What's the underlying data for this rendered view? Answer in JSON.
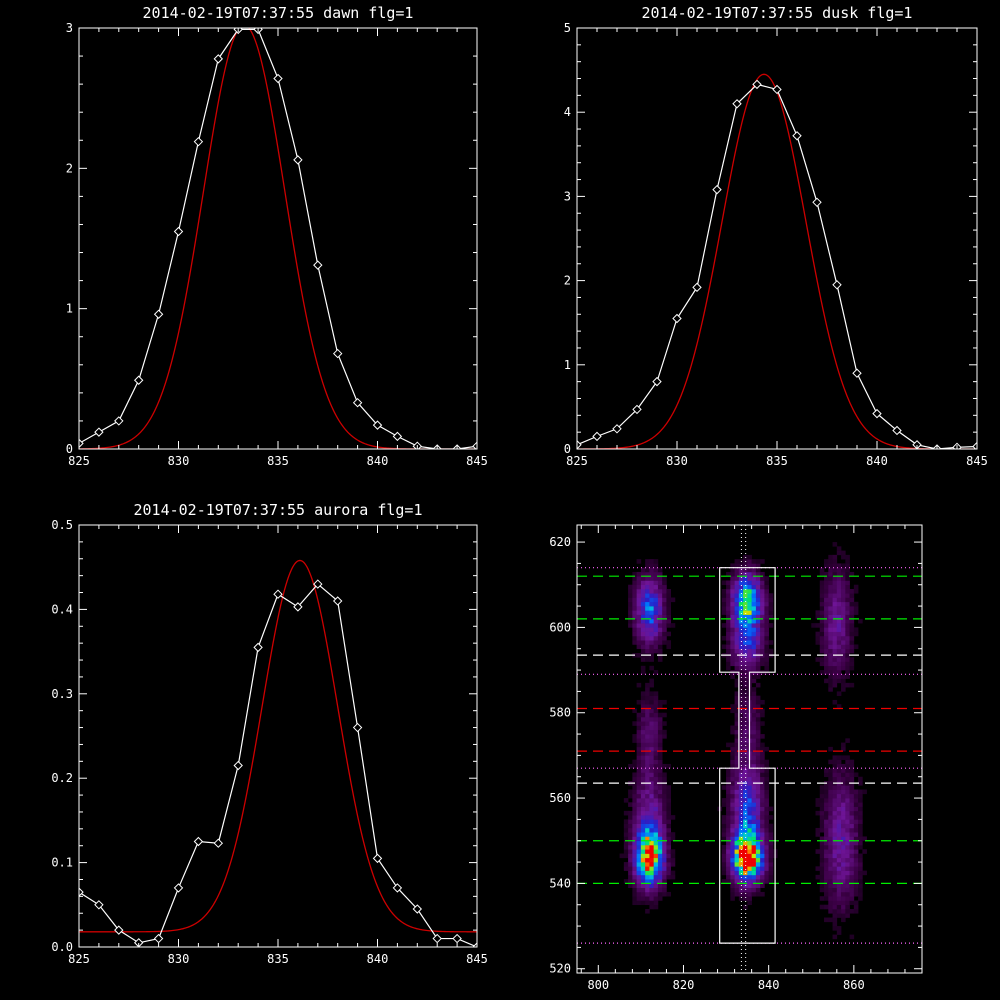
{
  "colors": {
    "background": "#000000",
    "axes": "#ffffff",
    "data": "#ffffff",
    "fit": "#cc0000"
  },
  "chart_data": [
    {
      "type": "line",
      "title": "2014-02-19T07:37:55 dawn flg=1",
      "xlim": [
        825,
        845
      ],
      "ylim": [
        0,
        3
      ],
      "xticks": [
        "825",
        "830",
        "835",
        "840",
        "845"
      ],
      "yticks": [
        "0",
        "1",
        "2",
        "3"
      ],
      "grid": false,
      "series": [
        {
          "marker": "diamond",
          "color": "#ffffff",
          "x": [
            825,
            826,
            827,
            828,
            829,
            830,
            831,
            832,
            833,
            834,
            835,
            836,
            837,
            838,
            839,
            840,
            841,
            842,
            843,
            844,
            845
          ],
          "y": [
            0.04,
            0.12,
            0.2,
            0.49,
            0.96,
            1.55,
            2.19,
            2.78,
            2.99,
            2.99,
            2.64,
            2.06,
            1.31,
            0.68,
            0.33,
            0.17,
            0.09,
            0.02,
            0.0,
            0.0,
            0.02
          ]
        },
        {
          "marker": "none",
          "color": "#cc0000",
          "fit": "gaussian",
          "amplitude": 3.02,
          "center": 833.3,
          "sigma": 2.05,
          "offset": 0.0
        }
      ]
    },
    {
      "type": "line",
      "title": "2014-02-19T07:37:55 dusk flg=1",
      "xlim": [
        825,
        845
      ],
      "ylim": [
        0,
        5
      ],
      "xticks": [
        "825",
        "830",
        "835",
        "840",
        "845"
      ],
      "yticks": [
        "0",
        "1",
        "2",
        "3",
        "4",
        "5"
      ],
      "grid": false,
      "series": [
        {
          "marker": "diamond",
          "color": "#ffffff",
          "x": [
            825,
            826,
            827,
            828,
            829,
            830,
            831,
            832,
            833,
            834,
            835,
            836,
            837,
            838,
            839,
            840,
            841,
            842,
            843,
            844,
            845
          ],
          "y": [
            0.05,
            0.15,
            0.24,
            0.47,
            0.8,
            1.55,
            1.92,
            3.08,
            4.1,
            4.33,
            4.27,
            3.72,
            2.93,
            1.95,
            0.9,
            0.42,
            0.22,
            0.05,
            0.0,
            0.02,
            0.03
          ]
        },
        {
          "marker": "none",
          "color": "#cc0000",
          "fit": "gaussian",
          "amplitude": 4.45,
          "center": 834.35,
          "sigma": 2.1,
          "offset": 0.0
        }
      ]
    },
    {
      "type": "line",
      "title": "2014-02-19T07:37:55 aurora flg=1",
      "xlim": [
        825,
        845
      ],
      "ylim": [
        0,
        0.5
      ],
      "xticks": [
        "825",
        "830",
        "835",
        "840",
        "845"
      ],
      "yticks": [
        "0.0",
        "0.1",
        "0.2",
        "0.3",
        "0.4",
        "0.5"
      ],
      "grid": false,
      "series": [
        {
          "marker": "diamond",
          "color": "#ffffff",
          "x": [
            825,
            826,
            827,
            828,
            829,
            830,
            831,
            832,
            833,
            834,
            835,
            836,
            837,
            838,
            839,
            840,
            841,
            842,
            843,
            844,
            845
          ],
          "y": [
            0.065,
            0.05,
            0.02,
            0.005,
            0.01,
            0.07,
            0.125,
            0.123,
            0.215,
            0.355,
            0.418,
            0.403,
            0.43,
            0.41,
            0.26,
            0.105,
            0.07,
            0.045,
            0.01,
            0.01,
            0.0
          ]
        },
        {
          "marker": "none",
          "color": "#cc0000",
          "fit": "gaussian",
          "amplitude": 0.44,
          "center": 836.1,
          "sigma": 1.9,
          "offset": 0.018
        }
      ]
    },
    {
      "type": "heatmap",
      "title": "",
      "xlim": [
        795,
        876
      ],
      "ylim": [
        519,
        624
      ],
      "xticks": [
        "800",
        "820",
        "840",
        "860"
      ],
      "yticks": [
        "520",
        "540",
        "560",
        "580",
        "600",
        "620"
      ],
      "colormap": "rainbow",
      "blobs": [
        {
          "x": 812,
          "y": 604,
          "sx": 2.2,
          "sy": 5.0,
          "amp": 0.45
        },
        {
          "x": 835,
          "y": 606,
          "sx": 2.3,
          "sy": 4.2,
          "amp": 0.72
        },
        {
          "x": 835,
          "y": 596,
          "sx": 2.5,
          "sy": 4.0,
          "amp": 0.32
        },
        {
          "x": 812,
          "y": 546,
          "sx": 2.1,
          "sy": 4.0,
          "amp": 0.8
        },
        {
          "x": 812,
          "y": 553,
          "sx": 2.4,
          "sy": 8.0,
          "amp": 0.3
        },
        {
          "x": 835,
          "y": 546,
          "sx": 2.3,
          "sy": 3.5,
          "amp": 1.0
        },
        {
          "x": 835,
          "y": 556,
          "sx": 2.4,
          "sy": 8.0,
          "amp": 0.42
        },
        {
          "x": 856,
          "y": 601,
          "sx": 2.3,
          "sy": 8.0,
          "amp": 0.22
        },
        {
          "x": 857,
          "y": 550,
          "sx": 2.6,
          "sy": 10.0,
          "amp": 0.25
        },
        {
          "x": 812,
          "y": 575,
          "sx": 2.0,
          "sy": 6.0,
          "amp": 0.15
        },
        {
          "x": 835,
          "y": 577,
          "sx": 2.0,
          "sy": 7.0,
          "amp": 0.12
        }
      ],
      "horizontal_lines": [
        {
          "y": 614,
          "style": "dotted",
          "color": "#ff66ff"
        },
        {
          "y": 612,
          "style": "dashed",
          "color": "#00ee00"
        },
        {
          "y": 602,
          "style": "dashed",
          "color": "#00ee00"
        },
        {
          "y": 593.5,
          "style": "dashed",
          "color": "#ffffff"
        },
        {
          "y": 589,
          "style": "dotted",
          "color": "#ff66ff"
        },
        {
          "y": 581,
          "style": "dashed",
          "color": "#ee0000"
        },
        {
          "y": 571,
          "style": "dashed",
          "color": "#ee0000"
        },
        {
          "y": 567,
          "style": "dotted",
          "color": "#ff66ff"
        },
        {
          "y": 563.5,
          "style": "dashed",
          "color": "#ffffff"
        },
        {
          "y": 550,
          "style": "dashed",
          "color": "#00ee00"
        },
        {
          "y": 540,
          "style": "dashed",
          "color": "#00ee00"
        },
        {
          "y": 526,
          "style": "dotted",
          "color": "#ff66ff"
        }
      ],
      "vertical_lines": [
        {
          "x": 833.6,
          "style": "dotted",
          "color": "#ffffff"
        },
        {
          "x": 834.6,
          "style": "dotted",
          "color": "#ffffff"
        }
      ],
      "outline": [
        [
          828.5,
          614
        ],
        [
          841.5,
          614
        ],
        [
          841.5,
          589.5
        ],
        [
          835.5,
          589.5
        ],
        [
          835.5,
          567
        ],
        [
          841.5,
          567
        ],
        [
          841.5,
          526
        ],
        [
          828.5,
          526
        ],
        [
          828.5,
          567
        ],
        [
          833.0,
          567
        ],
        [
          833.0,
          589.5
        ],
        [
          828.5,
          589.5
        ]
      ]
    }
  ]
}
